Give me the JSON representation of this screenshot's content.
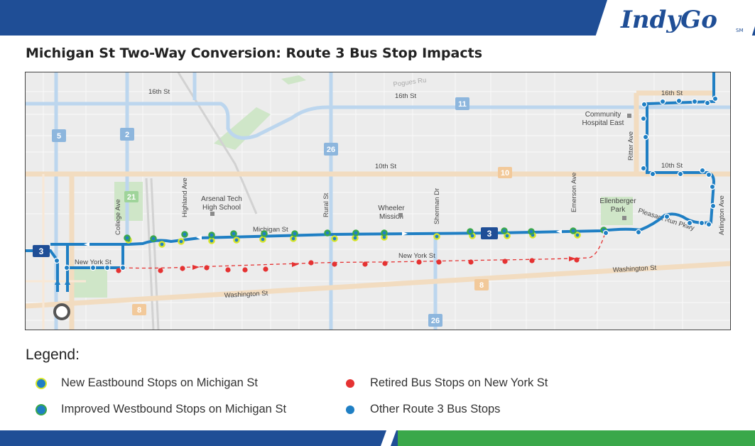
{
  "header": {
    "logo_text": "IndyGo",
    "logo_mark": "SM",
    "title": "Michigan St Two-Way Conversion: Route 3 Bus Stop Impacts",
    "brand_blue": "#1f4e96",
    "brand_green": "#3aa84a"
  },
  "map": {
    "streets": {
      "s16th_w": "16th St",
      "s16th_c": "16th St",
      "s16th_e": "16th St",
      "s10th_c": "10th St",
      "s10th_e": "10th St",
      "michigan": "Michigan St",
      "new_york_w": "New York St",
      "new_york_c": "New York St",
      "washington_w": "Washington St",
      "washington_e": "Washington St",
      "college": "College Ave",
      "highland": "Highland Ave",
      "rural": "Rural St",
      "sherman": "Sherman Dr",
      "emerson": "Emerson Ave",
      "ritter": "Ritter Ave",
      "arlington": "Arlington Ave",
      "pleasant_run": "Pleasant Run Pkwy",
      "pogues": "Pogues Ru"
    },
    "landmarks": {
      "arsenal_1": "Arsenal Tech",
      "arsenal_2": "High School",
      "wheeler_1": "Wheeler",
      "wheeler_2": "Mission",
      "community_1": "Community",
      "community_2": "Hospital East",
      "ellenberger_1": "Ellenberger",
      "ellenberger_2": "Park"
    },
    "route_shields": {
      "r3_west": "3",
      "r3_mid": "3",
      "r5": "5",
      "r2": "2",
      "r21": "21",
      "r26_top": "26",
      "r26_bottom": "26",
      "r11": "11",
      "r10": "10",
      "r8_west": "8",
      "r8_east": "8"
    },
    "stop_colors": {
      "new_eastbound_fill": "#1f7fc4",
      "new_eastbound_ring": "#d8e629",
      "improved_westbound_fill": "#1f7fc4",
      "improved_westbound_ring": "#3aa84a",
      "retired": "#e53232",
      "other": "#1f7fc4"
    }
  },
  "legend": {
    "heading": "Legend:",
    "items": [
      {
        "label": "New Eastbound Stops on Michigan St",
        "color": "#1f7fc4",
        "ring": "#d8e629"
      },
      {
        "label": "Improved Westbound Stops on Michigan St",
        "color": "#1f7fc4",
        "ring": "#3aa84a"
      },
      {
        "label": "Retired Bus Stops on New York St",
        "color": "#e53232",
        "ring": "#e53232"
      },
      {
        "label": "Other Route 3 Bus Stops",
        "color": "#1f7fc4",
        "ring": "#1f7fc4"
      }
    ]
  }
}
